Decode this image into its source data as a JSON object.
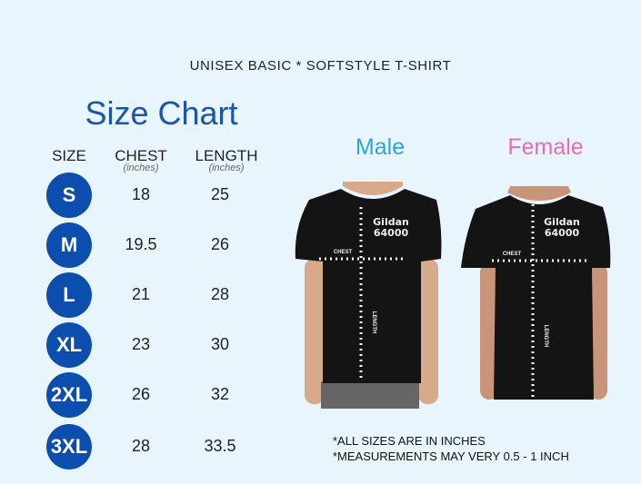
{
  "title": "UNISEX BASIC * SOFTSTYLE T-SHIRT",
  "chart_title": "Size Chart",
  "headers": {
    "size": "SIZE",
    "chest": "CHEST",
    "chest_unit": "(inches)",
    "length": "LENGTH",
    "length_unit": "(inches)"
  },
  "rows": [
    {
      "size": "S",
      "chest": "18",
      "length": "25"
    },
    {
      "size": "M",
      "chest": "19.5",
      "length": "26"
    },
    {
      "size": "L",
      "chest": "21",
      "length": "28"
    },
    {
      "size": "XL",
      "chest": "23",
      "length": "30"
    },
    {
      "size": "2XL",
      "chest": "26",
      "length": "32"
    },
    {
      "size": "3XL",
      "chest": "28",
      "length": "33.5"
    }
  ],
  "male": {
    "label": "Male",
    "brand": "Gildan",
    "model": "64000",
    "chest": "CHEST",
    "length": "LENGTH"
  },
  "female": {
    "label": "Female",
    "brand": "Gildan",
    "model": "64000",
    "chest": "CHEST",
    "length": "LENGTH"
  },
  "notes": [
    "*ALL SIZES ARE IN INCHES",
    "*MEASUREMENTS MAY VERY 0.5 - 1 INCH"
  ],
  "colors": {
    "background": "#e9f5fd",
    "circle": "#0b4eae",
    "title": "#1b55a8",
    "male": "#2aa6d8",
    "female": "#e46cc0"
  }
}
